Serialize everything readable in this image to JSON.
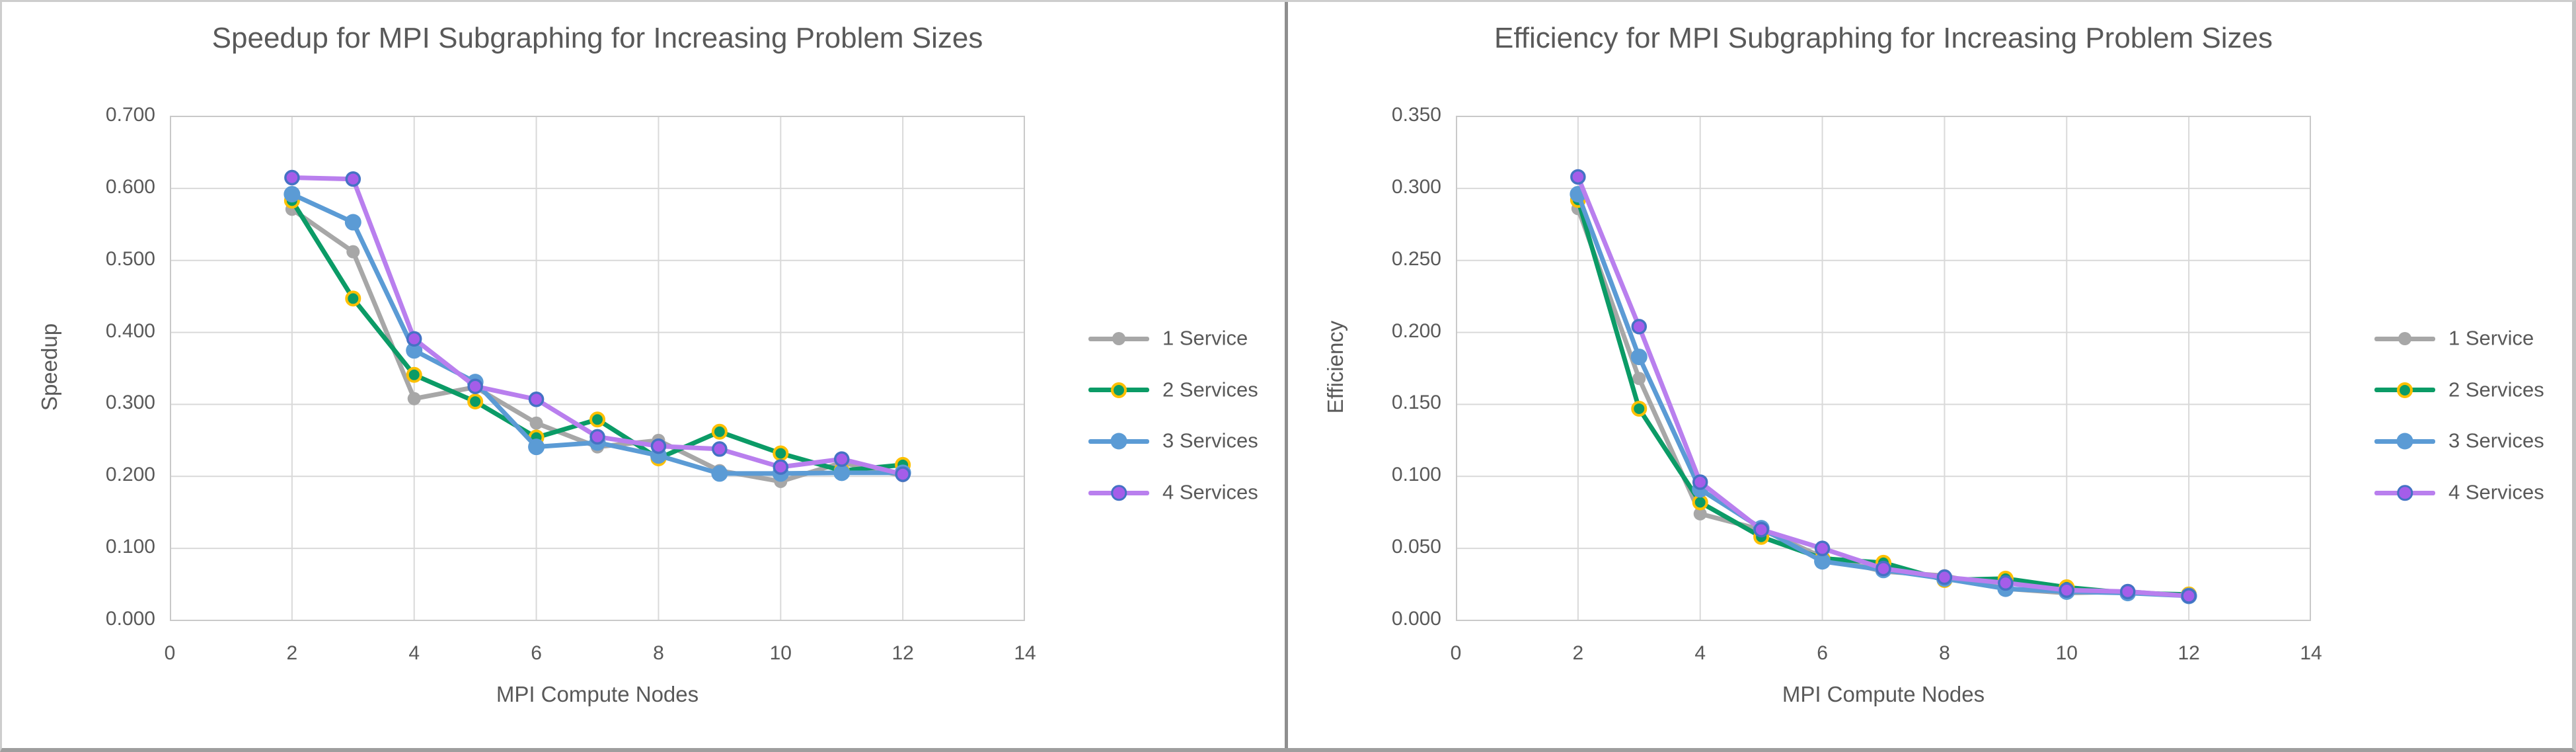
{
  "page": {
    "kind": "dual-line-chart-figure",
    "background": "#ffffff",
    "frame_border_color": "#9e9e9e",
    "divider_color": "#8f8f8f"
  },
  "colors": {
    "title_text": "#595959",
    "axis_text": "#595959",
    "gridline": "#d9d9d9",
    "plot_border": "#c9c9c9",
    "series_1_service": "#a7a7a7",
    "series_2_services_line": "#0b9b66",
    "series_2_services_marker_ring": "#ffc000",
    "series_3_services": "#5b9bd5",
    "series_4_services_line": "#b97fee",
    "series_4_services_marker_fill": "#a55de9",
    "series_4_services_marker_ring": "#4472c4"
  },
  "legend": {
    "position": "right",
    "items": [
      {
        "label": "1 Service",
        "line": "#a7a7a7",
        "fill": "#a7a7a7",
        "ring": "#a7a7a7",
        "radius": 10,
        "ring_width": 0
      },
      {
        "label": "2 Services",
        "line": "#0b9b66",
        "fill": "#0b9b66",
        "ring": "#ffc000",
        "radius": 10,
        "ring_width": 4
      },
      {
        "label": "3 Services",
        "line": "#5b9bd5",
        "fill": "#5b9bd5",
        "ring": "#5b9bd5",
        "radius": 12.5,
        "ring_width": 0
      },
      {
        "label": "4 Services",
        "line": "#b97fee",
        "fill": "#a55de9",
        "ring": "#4472c4",
        "radius": 10,
        "ring_width": 3.5
      }
    ]
  },
  "chart_data": [
    {
      "type": "line",
      "title": "Speedup for MPI Subgraphing for Increasing Problem Sizes",
      "xlabel": "MPI Compute Nodes",
      "ylabel": "Speedup",
      "x": [
        2,
        3,
        4,
        5,
        6,
        7,
        8,
        9,
        10,
        11,
        12
      ],
      "xlim": [
        0,
        14
      ],
      "x_tick_step": 2,
      "ylim": [
        0,
        0.7
      ],
      "y_tick_step": 0.1,
      "y_tick_format_decimals": 3,
      "grid": true,
      "legend_position": "right",
      "series": [
        {
          "name": "1 Service",
          "values": [
            0.571,
            0.512,
            0.308,
            0.324,
            0.274,
            0.241,
            0.25,
            0.208,
            0.193,
            0.219,
            0.201
          ]
        },
        {
          "name": "2 Services",
          "values": [
            0.583,
            0.447,
            0.341,
            0.304,
            0.254,
            0.279,
            0.225,
            0.262,
            0.232,
            0.208,
            0.216
          ]
        },
        {
          "name": "3 Services",
          "values": [
            0.592,
            0.553,
            0.375,
            0.331,
            0.241,
            0.247,
            0.229,
            0.204,
            0.204,
            0.205,
            0.205
          ]
        },
        {
          "name": "4 Services",
          "values": [
            0.615,
            0.613,
            0.391,
            0.325,
            0.307,
            0.255,
            0.242,
            0.238,
            0.213,
            0.224,
            0.203
          ]
        }
      ]
    },
    {
      "type": "line",
      "title": "Efficiency for MPI Subgraphing for Increasing Problem Sizes",
      "xlabel": "MPI Compute Nodes",
      "ylabel": "Efficiency",
      "x": [
        2,
        3,
        4,
        5,
        6,
        7,
        8,
        9,
        10,
        11,
        12
      ],
      "xlim": [
        0,
        14
      ],
      "x_tick_step": 2,
      "ylim": [
        0,
        0.35
      ],
      "y_tick_step": 0.05,
      "y_tick_format_decimals": 3,
      "grid": true,
      "legend_position": "right",
      "series": [
        {
          "name": "1 Service",
          "values": [
            0.286,
            0.168,
            0.074,
            0.063,
            0.044,
            0.034,
            0.031,
            0.022,
            0.019,
            0.02,
            0.017
          ]
        },
        {
          "name": "2 Services",
          "values": [
            0.292,
            0.147,
            0.082,
            0.058,
            0.043,
            0.04,
            0.028,
            0.029,
            0.023,
            0.019,
            0.018
          ]
        },
        {
          "name": "3 Services",
          "values": [
            0.296,
            0.183,
            0.091,
            0.064,
            0.041,
            0.035,
            0.029,
            0.022,
            0.02,
            0.019,
            0.017
          ]
        },
        {
          "name": "4 Services",
          "values": [
            0.308,
            0.204,
            0.096,
            0.063,
            0.05,
            0.036,
            0.03,
            0.026,
            0.021,
            0.02,
            0.017
          ]
        }
      ]
    }
  ]
}
